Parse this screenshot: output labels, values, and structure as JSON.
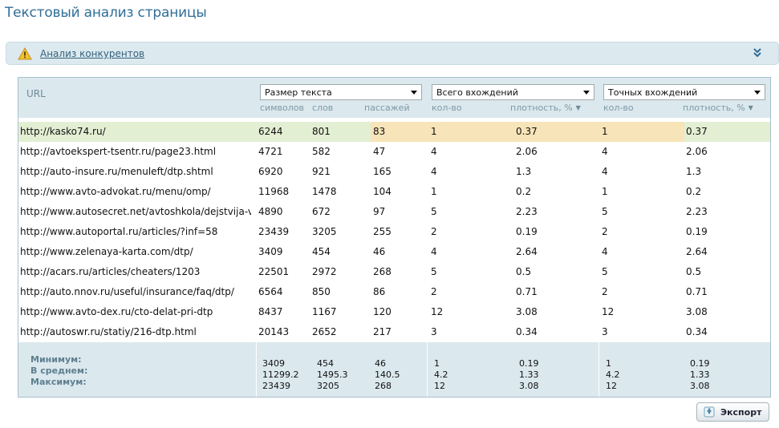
{
  "title": "Текстовый анализ страницы",
  "competitors_link": "Анализ конкурентов",
  "header": {
    "url": "URL",
    "size_select": "Размер текста",
    "total_select": "Всего вхождений",
    "exact_select": "Точных вхождений",
    "sub": {
      "symbols": "символов",
      "words": "слов",
      "passages": "пассажей",
      "count": "кол-во",
      "density": "плотность, %"
    }
  },
  "rows": [
    {
      "url": "http://kasko74.ru/",
      "symbols": "6244",
      "words": "801",
      "passages": "83",
      "total_count": "1",
      "total_density": "0.37",
      "exact_count": "1",
      "exact_density": "0.37"
    },
    {
      "url": "http://avtoekspert-tsentr.ru/page23.html",
      "symbols": "4721",
      "words": "582",
      "passages": "47",
      "total_count": "4",
      "total_density": "2.06",
      "exact_count": "4",
      "exact_density": "2.06"
    },
    {
      "url": "http://auto-insure.ru/menuleft/dtp.shtml",
      "symbols": "6920",
      "words": "921",
      "passages": "165",
      "total_count": "4",
      "total_density": "1.3",
      "exact_count": "4",
      "exact_density": "1.3"
    },
    {
      "url": "http://www.avto-advokat.ru/menu/omp/",
      "symbols": "11968",
      "words": "1478",
      "passages": "104",
      "total_count": "1",
      "total_density": "0.2",
      "exact_count": "1",
      "exact_density": "0.2"
    },
    {
      "url": "http://www.autosecret.net/avtoshkola/dejstvija-v-",
      "symbols": "4890",
      "words": "672",
      "passages": "97",
      "total_count": "5",
      "total_density": "2.23",
      "exact_count": "5",
      "exact_density": "2.23"
    },
    {
      "url": "http://www.autoportal.ru/articles/?inf=58",
      "symbols": "23439",
      "words": "3205",
      "passages": "255",
      "total_count": "2",
      "total_density": "0.19",
      "exact_count": "2",
      "exact_density": "0.19"
    },
    {
      "url": "http://www.zelenaya-karta.com/dtp/",
      "symbols": "3409",
      "words": "454",
      "passages": "46",
      "total_count": "4",
      "total_density": "2.64",
      "exact_count": "4",
      "exact_density": "2.64"
    },
    {
      "url": "http://acars.ru/articles/cheaters/1203",
      "symbols": "22501",
      "words": "2972",
      "passages": "268",
      "total_count": "5",
      "total_density": "0.5",
      "exact_count": "5",
      "exact_density": "0.5"
    },
    {
      "url": "http://auto.nnov.ru/useful/insurance/faq/dtp/",
      "symbols": "6564",
      "words": "850",
      "passages": "86",
      "total_count": "2",
      "total_density": "0.71",
      "exact_count": "2",
      "exact_density": "0.71"
    },
    {
      "url": "http://www.avto-dex.ru/cto-delat-pri-dtp",
      "symbols": "8437",
      "words": "1167",
      "passages": "120",
      "total_count": "12",
      "total_density": "3.08",
      "exact_count": "12",
      "exact_density": "3.08"
    },
    {
      "url": "http://autoswr.ru/statiy/216-dtp.html",
      "symbols": "20143",
      "words": "2652",
      "passages": "217",
      "total_count": "3",
      "total_density": "0.34",
      "exact_count": "3",
      "exact_density": "0.34"
    }
  ],
  "footer": {
    "labels": {
      "min": "Минимум:",
      "avg": "В среднем:",
      "max": "Максимум:"
    },
    "min": {
      "symbols": "3409",
      "words": "454",
      "passages": "46",
      "total_count": "1",
      "total_density": "0.19",
      "exact_count": "1",
      "exact_density": "0.19"
    },
    "avg": {
      "symbols": "11299.2",
      "words": "1495.3",
      "passages": "140.5",
      "total_count": "4.2",
      "total_density": "1.33",
      "exact_count": "4.2",
      "exact_density": "1.33"
    },
    "max": {
      "symbols": "23439",
      "words": "3205",
      "passages": "268",
      "total_count": "12",
      "total_density": "3.08",
      "exact_count": "12",
      "exact_density": "3.08"
    }
  },
  "export_label": "Экспорт",
  "colors": {
    "title": "#2f6e98",
    "highlight_green": "#e3efd3",
    "highlight_orange": "#f7e4b8",
    "header_bg": "#dbe8ee"
  }
}
